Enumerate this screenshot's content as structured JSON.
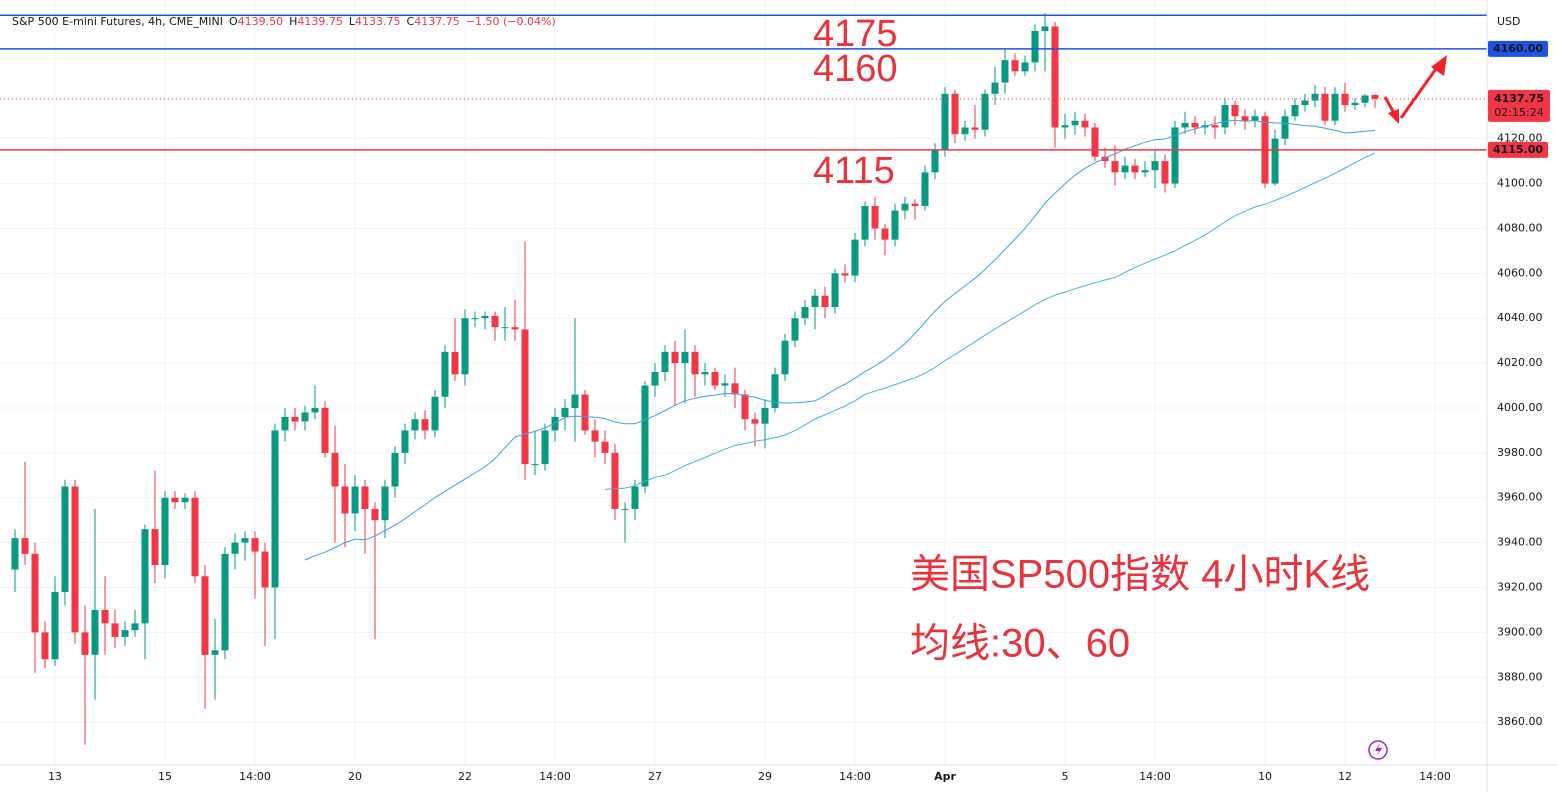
{
  "header": {
    "symbol": "S&P 500 E-mini Futures, 4h, CME_MINI",
    "ohlc_labels": [
      "O",
      "H",
      "L",
      "C"
    ],
    "ohlc_values": [
      "4139.50",
      "4139.75",
      "4133.75",
      "4137.75"
    ],
    "change": "−1.50 (−0.04%)",
    "currency": "USD"
  },
  "chart_data": {
    "type": "candlestick",
    "title": "美国SP500指数 4小时K线",
    "subtitle": "均线:30、60",
    "annotations": [
      "4175",
      "4160",
      "4115"
    ],
    "up_color": "#089981",
    "down_color": "#f23645",
    "grid": true,
    "ylim": [
      3840.9,
      4181.8
    ],
    "yticks": [
      {
        "value": 3860,
        "label": "3860.00"
      },
      {
        "value": 3880,
        "label": "3880.00"
      },
      {
        "value": 3900,
        "label": "3900.00"
      },
      {
        "value": 3920,
        "label": "3920.00"
      },
      {
        "value": 3940,
        "label": "3940.00"
      },
      {
        "value": 3960,
        "label": "3960.00"
      },
      {
        "value": 3980,
        "label": "3980.00"
      },
      {
        "value": 4000,
        "label": "4000.00"
      },
      {
        "value": 4020,
        "label": "4020.00"
      },
      {
        "value": 4040,
        "label": "4040.00"
      },
      {
        "value": 4060,
        "label": "4060.00"
      },
      {
        "value": 4080,
        "label": "4080.00"
      },
      {
        "value": 4100,
        "label": "4100.00"
      },
      {
        "value": 4120,
        "label": "4120.00"
      }
    ],
    "hlines": [
      {
        "value": 4175,
        "color": "#1e53e5"
      },
      {
        "value": 4160,
        "color": "#1e53e5",
        "label": "4160.00"
      },
      {
        "value": 4115,
        "color": "#f23645",
        "label": "4115.00"
      }
    ],
    "last_price": {
      "value": 4137.75,
      "label": "4137.75",
      "countdown": "02:15:24",
      "color": "#f23645"
    },
    "moving_averages": [
      {
        "period": 30,
        "color": "#3da2e6"
      },
      {
        "period": 60,
        "color": "#45b5d9"
      }
    ],
    "categories": [
      null,
      null,
      null,
      null,
      "13",
      null,
      null,
      null,
      null,
      null,
      null,
      null,
      null,
      null,
      null,
      "15",
      null,
      null,
      null,
      null,
      null,
      null,
      null,
      null,
      "14:00",
      null,
      null,
      null,
      null,
      null,
      null,
      null,
      null,
      null,
      "20",
      null,
      null,
      null,
      null,
      null,
      null,
      null,
      null,
      null,
      null,
      "22",
      null,
      null,
      null,
      null,
      null,
      null,
      null,
      null,
      "14:00",
      null,
      null,
      null,
      null,
      null,
      null,
      null,
      null,
      null,
      "27",
      null,
      null,
      null,
      null,
      null,
      null,
      null,
      null,
      null,
      null,
      "29",
      null,
      null,
      null,
      null,
      null,
      null,
      null,
      null,
      "14:00",
      null,
      null,
      null,
      null,
      null,
      null,
      null,
      null,
      "Apr",
      null,
      null,
      null,
      null,
      null,
      null,
      null,
      null,
      null,
      null,
      null,
      "5",
      null,
      null,
      null,
      null,
      null,
      null,
      null,
      null,
      "14:00",
      null,
      null,
      null,
      null,
      null,
      null,
      null,
      null,
      null,
      null,
      "10",
      null,
      null,
      null,
      null,
      null,
      null,
      null,
      "12",
      null,
      null,
      null,
      null,
      null,
      null,
      null,
      null,
      "14:00"
    ],
    "candles": [
      [
        3928,
        3946,
        3918,
        3942
      ],
      [
        3942,
        3976,
        3930,
        3935
      ],
      [
        3935,
        3940,
        3882,
        3900
      ],
      [
        3900,
        3905,
        3884,
        3888
      ],
      [
        3888,
        3925,
        3885,
        3918
      ],
      [
        3918,
        3968,
        3912,
        3965
      ],
      [
        3965,
        3968,
        3895,
        3900
      ],
      [
        3900,
        3912,
        3850,
        3890
      ],
      [
        3890,
        3955,
        3870,
        3910
      ],
      [
        3910,
        3925,
        3890,
        3904
      ],
      [
        3904,
        3910,
        3893,
        3898
      ],
      [
        3898,
        3905,
        3894,
        3901
      ],
      [
        3901,
        3910,
        3898,
        3904
      ],
      [
        3904,
        3948,
        3888,
        3946
      ],
      [
        3946,
        3972,
        3922,
        3930
      ],
      [
        3930,
        3963,
        3924,
        3960
      ],
      [
        3960,
        3963,
        3955,
        3958
      ],
      [
        3958,
        3962,
        3955,
        3960
      ],
      [
        3960,
        3963,
        3922,
        3925
      ],
      [
        3925,
        3930,
        3866,
        3890
      ],
      [
        3890,
        3906,
        3870,
        3892
      ],
      [
        3892,
        3938,
        3888,
        3935
      ],
      [
        3935,
        3944,
        3928,
        3940
      ],
      [
        3940,
        3945,
        3932,
        3942
      ],
      [
        3942,
        3945,
        3915,
        3936
      ],
      [
        3936,
        3940,
        3894,
        3920
      ],
      [
        3920,
        3993,
        3897,
        3990
      ],
      [
        3990,
        4000,
        3985,
        3996
      ],
      [
        3996,
        4000,
        3990,
        3994
      ],
      [
        3994,
        4001,
        3990,
        3998
      ],
      [
        3998,
        4010,
        3995,
        4000
      ],
      [
        4000,
        4003,
        3978,
        3980
      ],
      [
        3980,
        3992,
        3940,
        3965
      ],
      [
        3965,
        3975,
        3938,
        3953
      ],
      [
        3953,
        3970,
        3945,
        3965
      ],
      [
        3965,
        3968,
        3935,
        3955
      ],
      [
        3955,
        3958,
        3897,
        3950
      ],
      [
        3950,
        3968,
        3942,
        3965
      ],
      [
        3965,
        3983,
        3960,
        3980
      ],
      [
        3980,
        3993,
        3975,
        3990
      ],
      [
        3990,
        3998,
        3986,
        3995
      ],
      [
        3995,
        3999,
        3986,
        3990
      ],
      [
        3990,
        4008,
        3987,
        4005
      ],
      [
        4005,
        4028,
        4000,
        4025
      ],
      [
        4025,
        4040,
        4012,
        4015
      ],
      [
        4015,
        4044,
        4010,
        4040
      ],
      [
        4040,
        4043,
        4036,
        4040
      ],
      [
        4040,
        4043,
        4035,
        4041
      ],
      [
        4041,
        4043,
        4030,
        4036
      ],
      [
        4036,
        4045,
        4030,
        4036
      ],
      [
        4036,
        4048,
        4030,
        4035
      ],
      [
        4035,
        4074,
        3968,
        3975
      ],
      [
        3975,
        3990,
        3970,
        3975
      ],
      [
        3975,
        3993,
        3972,
        3990
      ],
      [
        3990,
        4000,
        3985,
        3996
      ],
      [
        3996,
        4004,
        3990,
        4000
      ],
      [
        4000,
        4040,
        3985,
        4006
      ],
      [
        4006,
        4008,
        3988,
        3990
      ],
      [
        3990,
        3995,
        3978,
        3985
      ],
      [
        3985,
        3990,
        3975,
        3980
      ],
      [
        3980,
        3984,
        3950,
        3955
      ],
      [
        3955,
        3958,
        3940,
        3955
      ],
      [
        3955,
        3968,
        3950,
        3965
      ],
      [
        3965,
        4012,
        3962,
        4010
      ],
      [
        4010,
        4020,
        4005,
        4016
      ],
      [
        4016,
        4028,
        4012,
        4025
      ],
      [
        4025,
        4030,
        4001,
        4020
      ],
      [
        4020,
        4035,
        4002,
        4025
      ],
      [
        4025,
        4028,
        4005,
        4015
      ],
      [
        4015,
        4020,
        4010,
        4016
      ],
      [
        4016,
        4018,
        4008,
        4010
      ],
      [
        4010,
        4015,
        4005,
        4011
      ],
      [
        4011,
        4018,
        4000,
        4006
      ],
      [
        4006,
        4008,
        3990,
        3995
      ],
      [
        3995,
        3998,
        3983,
        3993
      ],
      [
        3993,
        4004,
        3982,
        4000
      ],
      [
        4000,
        4018,
        3998,
        4015
      ],
      [
        4015,
        4033,
        4012,
        4030
      ],
      [
        4030,
        4043,
        4027,
        4040
      ],
      [
        4040,
        4048,
        4037,
        4045
      ],
      [
        4045,
        4053,
        4035,
        4050
      ],
      [
        4050,
        4054,
        4040,
        4045
      ],
      [
        4045,
        4062,
        4042,
        4060
      ],
      [
        4060,
        4064,
        4056,
        4059
      ],
      [
        4059,
        4078,
        4056,
        4075
      ],
      [
        4075,
        4092,
        4072,
        4090
      ],
      [
        4090,
        4094,
        4075,
        4080
      ],
      [
        4080,
        4082,
        4068,
        4075
      ],
      [
        4075,
        4091,
        4072,
        4088
      ],
      [
        4088,
        4094,
        4084,
        4091
      ],
      [
        4091,
        4093,
        4084,
        4090
      ],
      [
        4090,
        4108,
        4088,
        4105
      ],
      [
        4105,
        4118,
        4102,
        4115
      ],
      [
        4115,
        4143,
        4112,
        4140
      ],
      [
        4140,
        4142,
        4118,
        4122
      ],
      [
        4122,
        4128,
        4119,
        4125
      ],
      [
        4125,
        4135,
        4120,
        4124
      ],
      [
        4124,
        4142,
        4121,
        4140
      ],
      [
        4140,
        4152,
        4135,
        4145
      ],
      [
        4145,
        4160,
        4140,
        4155
      ],
      [
        4155,
        4158,
        4148,
        4150
      ],
      [
        4150,
        4157,
        4148,
        4154
      ],
      [
        4154,
        4171,
        4150,
        4168
      ],
      [
        4168,
        4176,
        4150,
        4170
      ],
      [
        4170,
        4172,
        4116,
        4125
      ],
      [
        4125,
        4131,
        4120,
        4126
      ],
      [
        4126,
        4132,
        4122,
        4128
      ],
      [
        4128,
        4131,
        4121,
        4125
      ],
      [
        4125,
        4127,
        4110,
        4112
      ],
      [
        4112,
        4116,
        4107,
        4110
      ],
      [
        4110,
        4117,
        4099,
        4105
      ],
      [
        4105,
        4112,
        4102,
        4108
      ],
      [
        4108,
        4111,
        4102,
        4105
      ],
      [
        4105,
        4110,
        4103,
        4106
      ],
      [
        4106,
        4115,
        4098,
        4110
      ],
      [
        4110,
        4113,
        4096,
        4100
      ],
      [
        4100,
        4128,
        4098,
        4125
      ],
      [
        4125,
        4132,
        4122,
        4127
      ],
      [
        4127,
        4130,
        4122,
        4125
      ],
      [
        4125,
        4128,
        4122,
        4126
      ],
      [
        4126,
        4130,
        4120,
        4125
      ],
      [
        4125,
        4138,
        4122,
        4135
      ],
      [
        4135,
        4137,
        4126,
        4130
      ],
      [
        4130,
        4133,
        4124,
        4128
      ],
      [
        4128,
        4133,
        4125,
        4130
      ],
      [
        4130,
        4132,
        4098,
        4100
      ],
      [
        4100,
        4124,
        4099,
        4120
      ],
      [
        4120,
        4133,
        4117,
        4130
      ],
      [
        4130,
        4138,
        4128,
        4135
      ],
      [
        4135,
        4140,
        4132,
        4137
      ],
      [
        4137,
        4144,
        4134,
        4140
      ],
      [
        4140,
        4143,
        4126,
        4128
      ],
      [
        4128,
        4143,
        4126,
        4140
      ],
      [
        4140,
        4145,
        4132,
        4135
      ],
      [
        4135,
        4138,
        4133,
        4136
      ],
      [
        4136,
        4140,
        4134,
        4139.25
      ],
      [
        4139.5,
        4139.75,
        4133.75,
        4137.75
      ],
      null,
      null,
      null,
      null,
      null,
      null
    ]
  }
}
